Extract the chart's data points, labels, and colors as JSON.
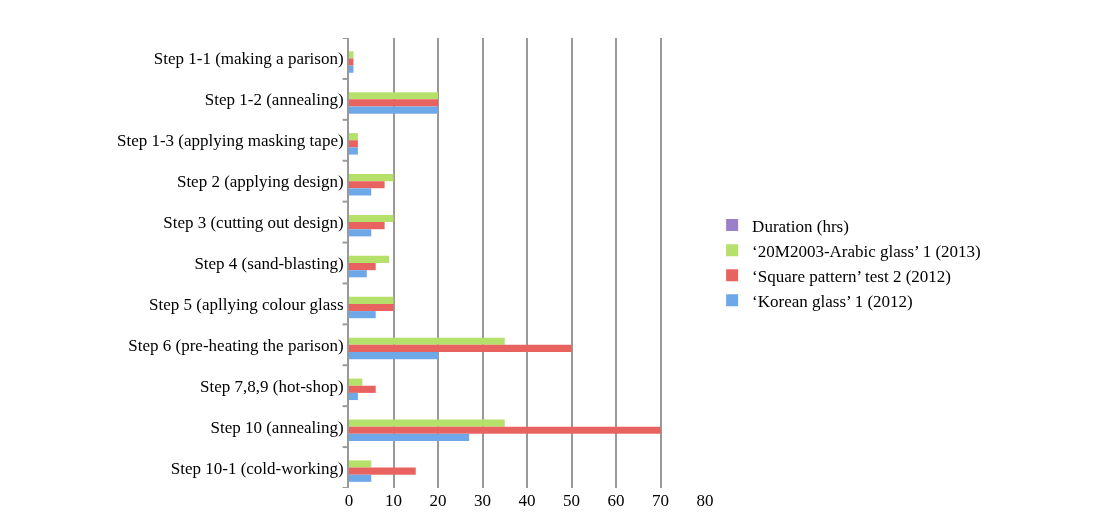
{
  "chart_data": {
    "type": "bar",
    "orientation": "horizontal",
    "categories": [
      "Step 1-1 (making a parison)",
      "Step 1-2 (annealing)",
      "Step 1-3 (applying masking tape)",
      "Step 2 (applying design)",
      "Step 3 (cutting out design)",
      "Step 4 (sand-blasting)",
      "Step 5 (apllying colour glass",
      "Step 6 (pre-heating the parison)",
      "Step 7,8,9 (hot-shop)",
      "Step 10 (annealing)",
      "Step 10-1 (cold-working)"
    ],
    "series": [
      {
        "name": "Duration (hrs)",
        "color": "#9b7fc9",
        "values": [
          null,
          null,
          null,
          null,
          null,
          null,
          null,
          null,
          null,
          null,
          null
        ]
      },
      {
        "name": "‘20M2003-Arabic glass’ 1 (2013)",
        "color": "#b5e06a",
        "values": [
          1,
          20,
          2,
          10,
          10,
          9,
          10,
          35,
          3,
          35,
          5
        ]
      },
      {
        "name": "‘Square pattern’ test 2 (2012)",
        "color": "#e8635f",
        "values": [
          1,
          20,
          2,
          8,
          8,
          6,
          10,
          50,
          6,
          70,
          15
        ]
      },
      {
        "name": "‘Korean glass’ 1 (2012)",
        "color": "#6fa8e8",
        "values": [
          1,
          20,
          2,
          5,
          5,
          4,
          6,
          20,
          2,
          27,
          5
        ]
      }
    ],
    "xlim": [
      0,
      80
    ],
    "xticks": [
      0,
      10,
      20,
      30,
      40,
      50,
      60,
      70,
      80
    ],
    "grid": "x",
    "legend": "right"
  }
}
